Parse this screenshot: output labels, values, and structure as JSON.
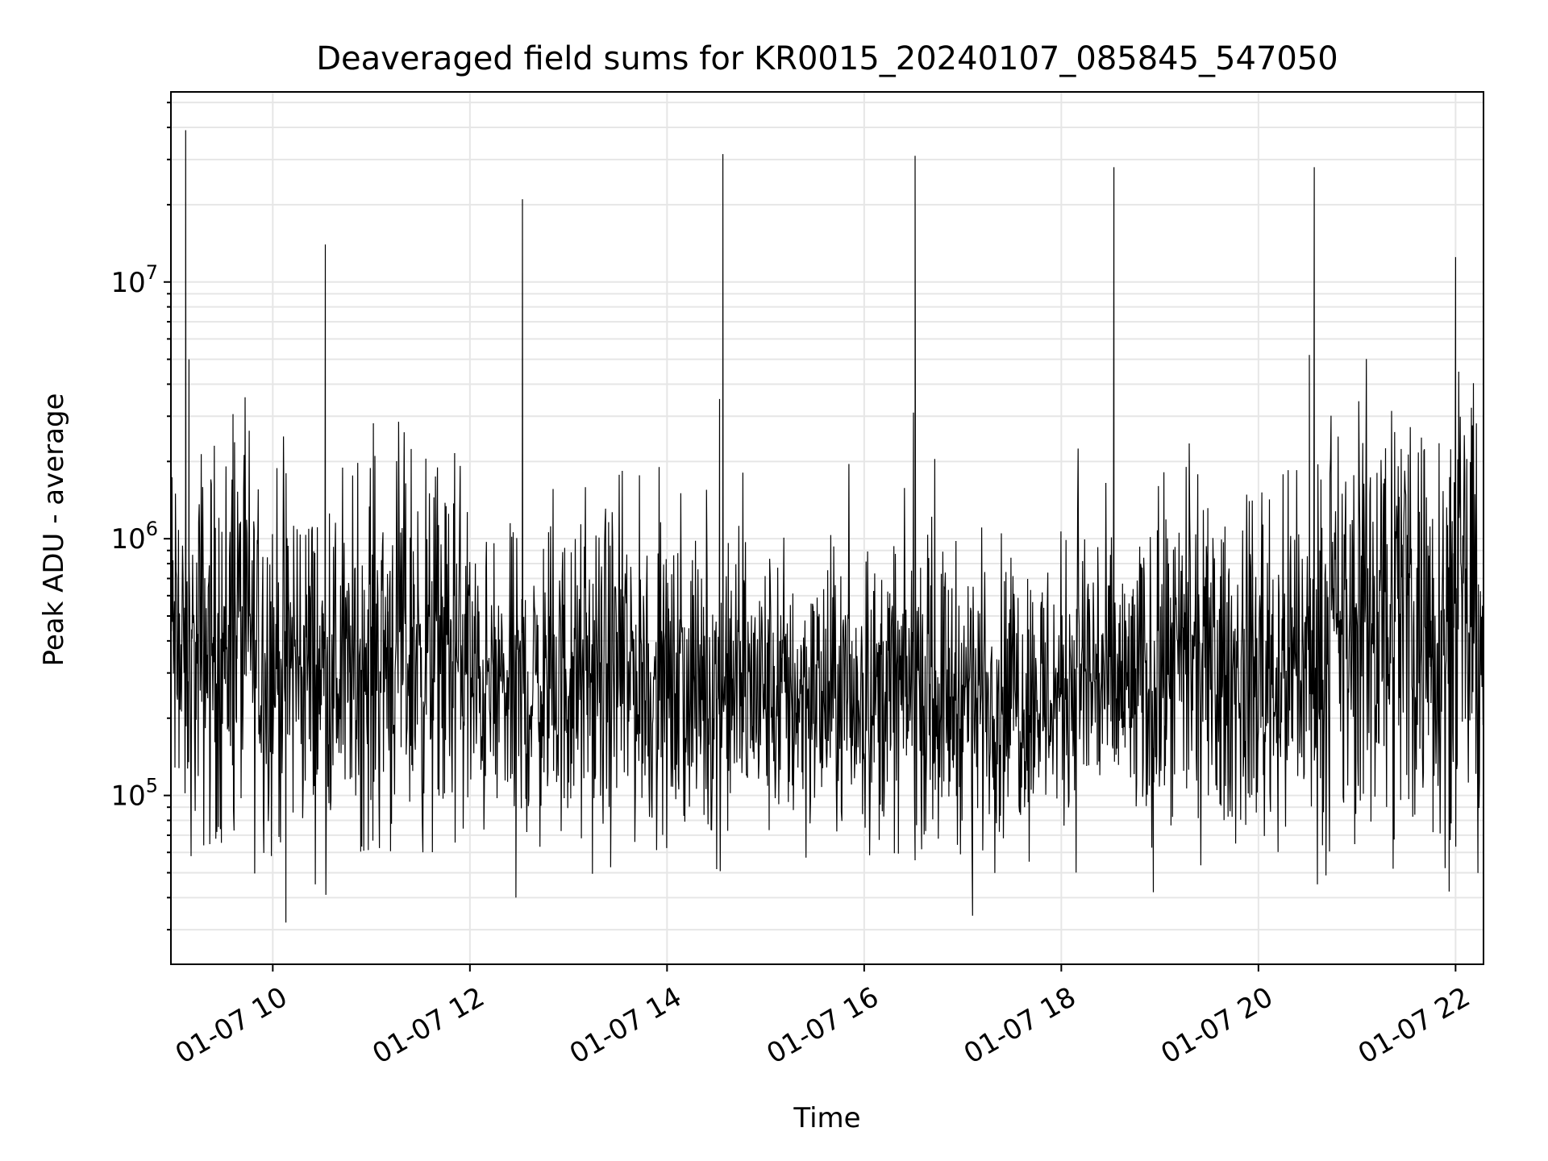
{
  "chart_data": {
    "type": "line",
    "title": "Deaveraged field sums for KR0015_20240107_085845_547050",
    "xlabel": "Time",
    "ylabel": "Peak ADU - average",
    "yscale": "log",
    "ylim": [
      22000,
      55000000
    ],
    "xlim": [
      "2024-01-07 08:58",
      "2024-01-07 22:17"
    ],
    "x_ticks": [
      "01-07 10",
      "01-07 12",
      "01-07 14",
      "01-07 16",
      "01-07 18",
      "01-07 20",
      "01-07 22"
    ],
    "x_tick_times": [
      "2024-01-07 10:00",
      "2024-01-07 12:00",
      "2024-01-07 14:00",
      "2024-01-07 16:00",
      "2024-01-07 18:00",
      "2024-01-07 20:00",
      "2024-01-07 22:00"
    ],
    "y_ticks": [
      {
        "base": "10",
        "exp": "5",
        "value": 100000
      },
      {
        "base": "10",
        "exp": "6",
        "value": 1000000
      },
      {
        "base": "10",
        "exp": "7",
        "value": 10000000
      }
    ],
    "grid": true,
    "line_color": "#000000",
    "series": [
      {
        "x": [
          "2024-01-07 08:58",
          "2024-01-07 09:04",
          "2024-01-07 09:07",
          "2024-01-07 09:09",
          "2024-01-07 09:25",
          "2024-01-07 09:38",
          "2024-01-07 09:59",
          "2024-01-07 10:08",
          "2024-01-07 10:32",
          "2024-01-07 10:47",
          "2024-01-07 11:10",
          "2024-01-07 11:52",
          "2024-01-07 12:09",
          "2024-01-07 12:28",
          "2024-01-07 12:32",
          "2024-01-07 13:12",
          "2024-01-07 13:32",
          "2024-01-07 14:05",
          "2024-01-07 14:32",
          "2024-01-07 14:34",
          "2024-01-07 15:10",
          "2024-01-07 15:50",
          "2024-01-07 16:30",
          "2024-01-07 16:31",
          "2024-01-07 16:32",
          "2024-01-07 16:40",
          "2024-01-07 17:06",
          "2024-01-07 17:12",
          "2024-01-07 17:45",
          "2024-01-07 18:15",
          "2024-01-07 18:32",
          "2024-01-07 18:35",
          "2024-01-07 18:56",
          "2024-01-07 19:20",
          "2024-01-07 19:36",
          "2024-01-07 19:58",
          "2024-01-07 20:28",
          "2024-01-07 20:31",
          "2024-01-07 20:34",
          "2024-01-07 20:52",
          "2024-01-07 21:10",
          "2024-01-07 21:30",
          "2024-01-07 21:45",
          "2024-01-07 21:59",
          "2024-01-07 22:00",
          "2024-01-07 22:10",
          "2024-01-07 22:17"
        ],
        "y": [
          420000,
          300000,
          39000000,
          5000000,
          380000,
          420000,
          340000,
          32000,
          14000000,
          300000,
          380000,
          350000,
          250000,
          40000,
          21000000,
          270000,
          300000,
          250000,
          3500000,
          31500000,
          250000,
          240000,
          3100000,
          31000000,
          260000,
          250000,
          34000,
          250000,
          250000,
          300000,
          28000000,
          260000,
          42000,
          300000,
          280000,
          300000,
          310000,
          5200000,
          28000000,
          400000,
          500000,
          550000,
          480000,
          450000,
          12500000,
          460000,
          430000
        ]
      }
    ]
  }
}
